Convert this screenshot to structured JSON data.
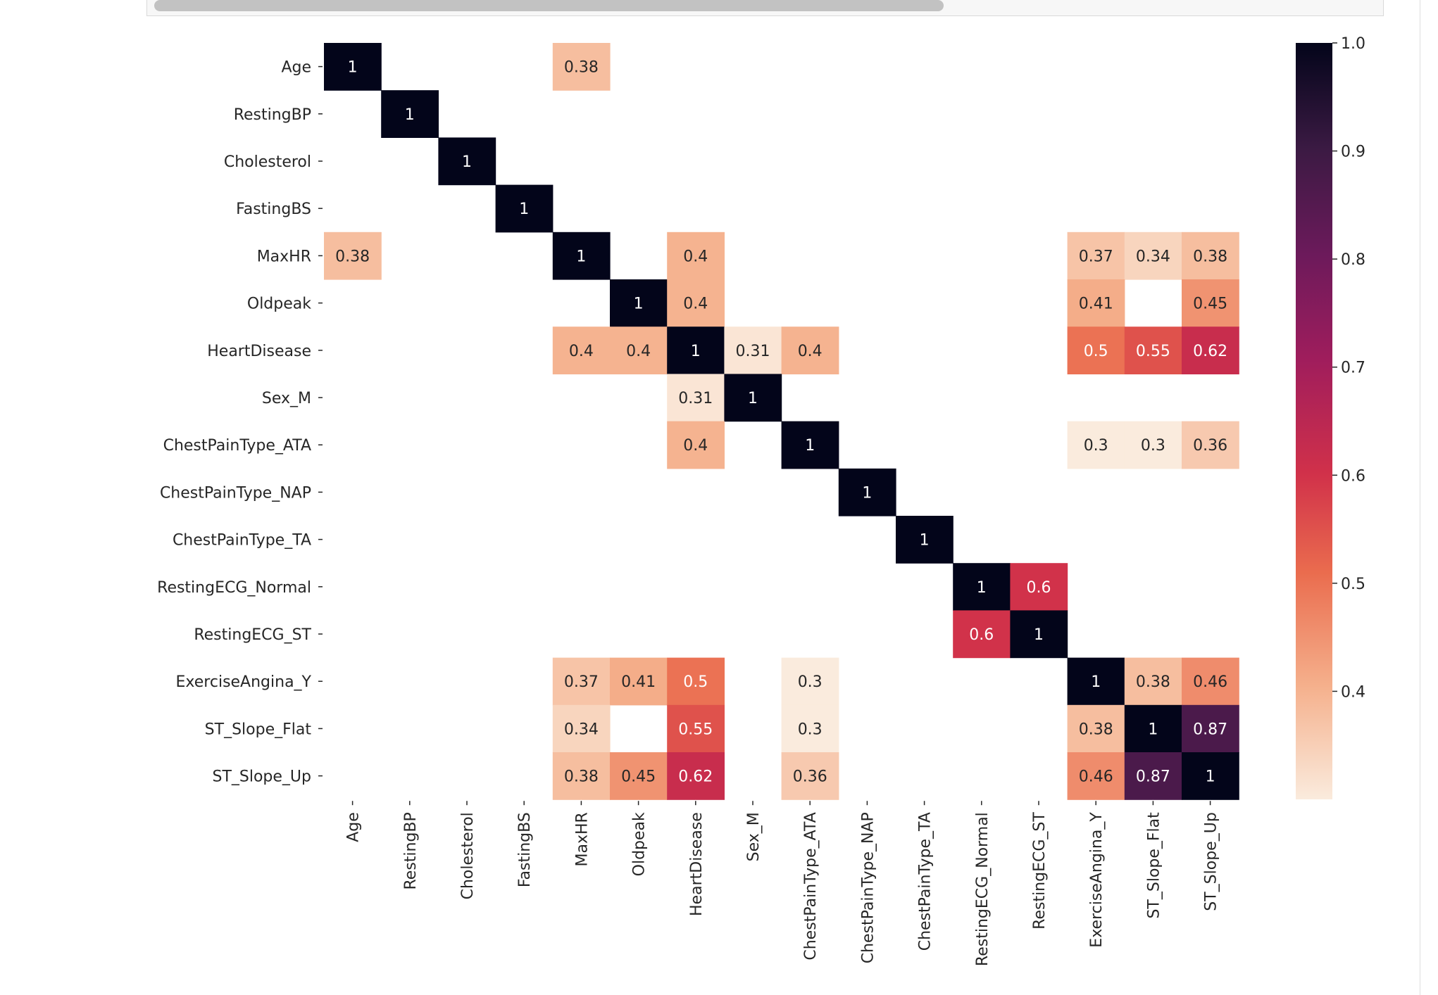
{
  "chart_data": {
    "type": "heatmap",
    "title": "",
    "xlabel": "",
    "ylabel": "",
    "variables": [
      "Age",
      "RestingBP",
      "Cholesterol",
      "FastingBS",
      "MaxHR",
      "Oldpeak",
      "HeartDisease",
      "Sex_M",
      "ChestPainType_ATA",
      "ChestPainType_NAP",
      "ChestPainType_TA",
      "RestingECG_Normal",
      "RestingECG_ST",
      "ExerciseAngina_Y",
      "ST_Slope_Flat",
      "ST_Slope_Up"
    ],
    "masked_below": 0.3,
    "colormap": "rocket_r",
    "color_range": [
      0.3,
      1.0
    ],
    "cells": [
      {
        "row": "Age",
        "col": "Age",
        "value": 1,
        "label": "1"
      },
      {
        "row": "Age",
        "col": "MaxHR",
        "value": 0.38,
        "label": "0.38"
      },
      {
        "row": "RestingBP",
        "col": "RestingBP",
        "value": 1,
        "label": "1"
      },
      {
        "row": "Cholesterol",
        "col": "Cholesterol",
        "value": 1,
        "label": "1"
      },
      {
        "row": "FastingBS",
        "col": "FastingBS",
        "value": 1,
        "label": "1"
      },
      {
        "row": "MaxHR",
        "col": "Age",
        "value": 0.38,
        "label": "0.38"
      },
      {
        "row": "MaxHR",
        "col": "MaxHR",
        "value": 1,
        "label": "1"
      },
      {
        "row": "MaxHR",
        "col": "HeartDisease",
        "value": 0.4,
        "label": "0.4"
      },
      {
        "row": "MaxHR",
        "col": "ExerciseAngina_Y",
        "value": 0.37,
        "label": "0.37"
      },
      {
        "row": "MaxHR",
        "col": "ST_Slope_Flat",
        "value": 0.34,
        "label": "0.34"
      },
      {
        "row": "MaxHR",
        "col": "ST_Slope_Up",
        "value": 0.38,
        "label": "0.38"
      },
      {
        "row": "Oldpeak",
        "col": "Oldpeak",
        "value": 1,
        "label": "1"
      },
      {
        "row": "Oldpeak",
        "col": "HeartDisease",
        "value": 0.4,
        "label": "0.4"
      },
      {
        "row": "Oldpeak",
        "col": "ExerciseAngina_Y",
        "value": 0.41,
        "label": "0.41"
      },
      {
        "row": "Oldpeak",
        "col": "ST_Slope_Up",
        "value": 0.45,
        "label": "0.45"
      },
      {
        "row": "HeartDisease",
        "col": "MaxHR",
        "value": 0.4,
        "label": "0.4"
      },
      {
        "row": "HeartDisease",
        "col": "Oldpeak",
        "value": 0.4,
        "label": "0.4"
      },
      {
        "row": "HeartDisease",
        "col": "HeartDisease",
        "value": 1,
        "label": "1"
      },
      {
        "row": "HeartDisease",
        "col": "Sex_M",
        "value": 0.31,
        "label": "0.31"
      },
      {
        "row": "HeartDisease",
        "col": "ChestPainType_ATA",
        "value": 0.4,
        "label": "0.4"
      },
      {
        "row": "HeartDisease",
        "col": "ExerciseAngina_Y",
        "value": 0.5,
        "label": "0.5"
      },
      {
        "row": "HeartDisease",
        "col": "ST_Slope_Flat",
        "value": 0.55,
        "label": "0.55"
      },
      {
        "row": "HeartDisease",
        "col": "ST_Slope_Up",
        "value": 0.62,
        "label": "0.62"
      },
      {
        "row": "Sex_M",
        "col": "HeartDisease",
        "value": 0.31,
        "label": "0.31"
      },
      {
        "row": "Sex_M",
        "col": "Sex_M",
        "value": 1,
        "label": "1"
      },
      {
        "row": "ChestPainType_ATA",
        "col": "HeartDisease",
        "value": 0.4,
        "label": "0.4"
      },
      {
        "row": "ChestPainType_ATA",
        "col": "ChestPainType_ATA",
        "value": 1,
        "label": "1"
      },
      {
        "row": "ChestPainType_ATA",
        "col": "ExerciseAngina_Y",
        "value": 0.3,
        "label": "0.3"
      },
      {
        "row": "ChestPainType_ATA",
        "col": "ST_Slope_Flat",
        "value": 0.3,
        "label": "0.3"
      },
      {
        "row": "ChestPainType_ATA",
        "col": "ST_Slope_Up",
        "value": 0.36,
        "label": "0.36"
      },
      {
        "row": "ChestPainType_NAP",
        "col": "ChestPainType_NAP",
        "value": 1,
        "label": "1"
      },
      {
        "row": "ChestPainType_TA",
        "col": "ChestPainType_TA",
        "value": 1,
        "label": "1"
      },
      {
        "row": "RestingECG_Normal",
        "col": "RestingECG_Normal",
        "value": 1,
        "label": "1"
      },
      {
        "row": "RestingECG_Normal",
        "col": "RestingECG_ST",
        "value": 0.6,
        "label": "0.6"
      },
      {
        "row": "RestingECG_ST",
        "col": "RestingECG_Normal",
        "value": 0.6,
        "label": "0.6"
      },
      {
        "row": "RestingECG_ST",
        "col": "RestingECG_ST",
        "value": 1,
        "label": "1"
      },
      {
        "row": "ExerciseAngina_Y",
        "col": "MaxHR",
        "value": 0.37,
        "label": "0.37"
      },
      {
        "row": "ExerciseAngina_Y",
        "col": "Oldpeak",
        "value": 0.41,
        "label": "0.41"
      },
      {
        "row": "ExerciseAngina_Y",
        "col": "HeartDisease",
        "value": 0.5,
        "label": "0.5"
      },
      {
        "row": "ExerciseAngina_Y",
        "col": "ChestPainType_ATA",
        "value": 0.3,
        "label": "0.3"
      },
      {
        "row": "ExerciseAngina_Y",
        "col": "ExerciseAngina_Y",
        "value": 1,
        "label": "1"
      },
      {
        "row": "ExerciseAngina_Y",
        "col": "ST_Slope_Flat",
        "value": 0.38,
        "label": "0.38"
      },
      {
        "row": "ExerciseAngina_Y",
        "col": "ST_Slope_Up",
        "value": 0.46,
        "label": "0.46"
      },
      {
        "row": "ST_Slope_Flat",
        "col": "MaxHR",
        "value": 0.34,
        "label": "0.34"
      },
      {
        "row": "ST_Slope_Flat",
        "col": "HeartDisease",
        "value": 0.55,
        "label": "0.55"
      },
      {
        "row": "ST_Slope_Flat",
        "col": "ChestPainType_ATA",
        "value": 0.3,
        "label": "0.3"
      },
      {
        "row": "ST_Slope_Flat",
        "col": "ExerciseAngina_Y",
        "value": 0.38,
        "label": "0.38"
      },
      {
        "row": "ST_Slope_Flat",
        "col": "ST_Slope_Flat",
        "value": 1,
        "label": "1"
      },
      {
        "row": "ST_Slope_Flat",
        "col": "ST_Slope_Up",
        "value": 0.87,
        "label": "0.87"
      },
      {
        "row": "ST_Slope_Up",
        "col": "MaxHR",
        "value": 0.38,
        "label": "0.38"
      },
      {
        "row": "ST_Slope_Up",
        "col": "Oldpeak",
        "value": 0.45,
        "label": "0.45"
      },
      {
        "row": "ST_Slope_Up",
        "col": "HeartDisease",
        "value": 0.62,
        "label": "0.62"
      },
      {
        "row": "ST_Slope_Up",
        "col": "ChestPainType_ATA",
        "value": 0.36,
        "label": "0.36"
      },
      {
        "row": "ST_Slope_Up",
        "col": "ExerciseAngina_Y",
        "value": 0.46,
        "label": "0.46"
      },
      {
        "row": "ST_Slope_Up",
        "col": "ST_Slope_Flat",
        "value": 0.87,
        "label": "0.87"
      },
      {
        "row": "ST_Slope_Up",
        "col": "ST_Slope_Up",
        "value": 1,
        "label": "1"
      }
    ],
    "colorbar": {
      "ticks": [
        1.0,
        0.9,
        0.8,
        0.7,
        0.6,
        0.5,
        0.4
      ],
      "tick_labels": [
        "1.0",
        "0.9",
        "0.8",
        "0.7",
        "0.6",
        "0.5",
        "0.4"
      ]
    }
  }
}
